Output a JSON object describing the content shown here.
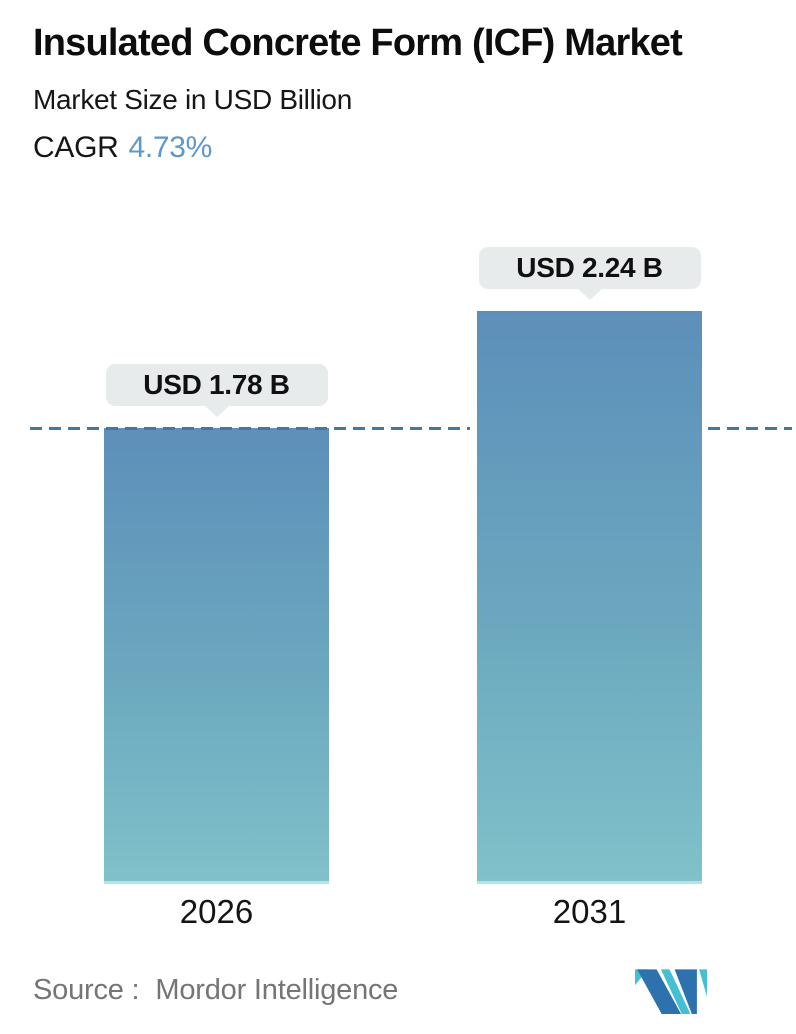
{
  "header": {
    "title": "Insulated Concrete Form (ICF) Market",
    "subtitle": "Market Size in USD Billion",
    "cagr_label": "CAGR",
    "cagr_value": "4.73%"
  },
  "chart_data": {
    "type": "bar",
    "categories": [
      "2026",
      "2031"
    ],
    "values": [
      1.78,
      2.24
    ],
    "value_labels": [
      "USD 1.78 B",
      "USD 2.24 B"
    ],
    "unit": "USD Billion",
    "ylim": [
      0,
      2.5
    ],
    "grid": false,
    "legend": false,
    "reference_line": {
      "value": 1.78,
      "style": "dashed"
    },
    "bar_gradient": [
      "#5d8fba",
      "#80c1ca"
    ]
  },
  "footer": {
    "source_label": "Source :",
    "source_value": "Mordor Intelligence",
    "logo_name": "mordor-intelligence-logo"
  },
  "colors": {
    "accent_blue": "#5e97c8",
    "bar_top": "#5d8fba",
    "bar_bottom": "#80c1ca",
    "dashed_line": "#44789f",
    "tooltip_bg": "#e7ebec",
    "source_text": "#757575",
    "logo_blue": "#2e72ad",
    "logo_teal": "#45c0d2"
  }
}
